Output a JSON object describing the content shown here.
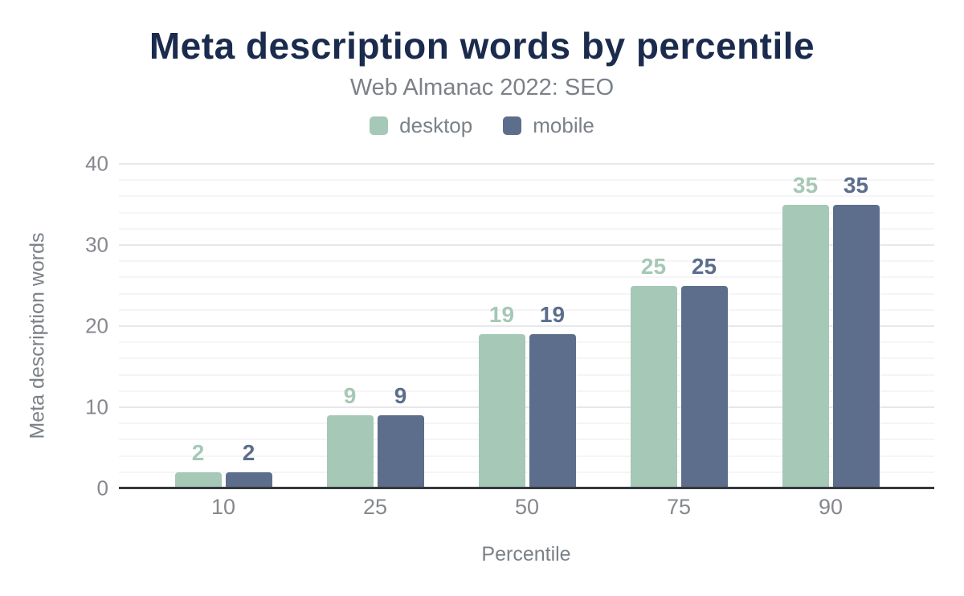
{
  "chart_data": {
    "type": "bar",
    "title": "Meta description words by percentile",
    "subtitle": "Web Almanac 2022: SEO",
    "xlabel": "Percentile",
    "ylabel": "Meta description words",
    "categories": [
      "10",
      "25",
      "50",
      "75",
      "90"
    ],
    "series": [
      {
        "name": "desktop",
        "color": "#a6c8b6",
        "values": [
          2,
          9,
          19,
          25,
          35
        ]
      },
      {
        "name": "mobile",
        "color": "#5c6e8c",
        "values": [
          2,
          9,
          19,
          25,
          35
        ]
      }
    ],
    "ylim": [
      0,
      40
    ],
    "yticks": [
      0,
      10,
      20,
      30,
      40
    ],
    "minor_grid_step": 2,
    "grid": "horizontal",
    "legend_position": "top",
    "bar_value_labels": true
  },
  "style": {
    "background": "#ffffff",
    "title_color": "#1b2b4e",
    "text_color": "#7b8187",
    "tick_color": "#85888e",
    "axis_color": "#35393d",
    "grid_major_color": "#e8e8eb",
    "grid_minor_color": "#f5f5f7"
  }
}
